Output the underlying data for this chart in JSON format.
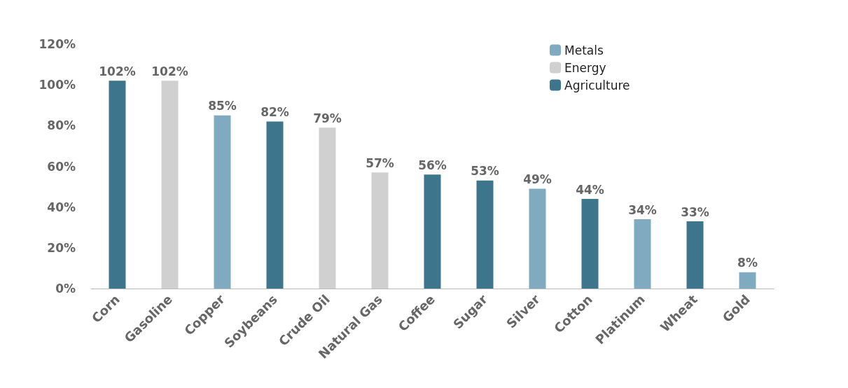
{
  "chart_data": {
    "type": "bar",
    "categories": [
      "Corn",
      "Gasoline",
      "Copper",
      "Soybeans",
      "Crude Oil",
      "Natural Gas",
      "Coffee",
      "Sugar",
      "Silver",
      "Cotton",
      "Platinum",
      "Wheat",
      "Gold"
    ],
    "series": [
      {
        "name": "Metals",
        "color": "#7faabf",
        "values": [
          null,
          null,
          85,
          null,
          null,
          null,
          null,
          null,
          49,
          null,
          34,
          null,
          8
        ],
        "value_labels": [
          null,
          null,
          "85%",
          null,
          null,
          null,
          null,
          null,
          "49%",
          null,
          "34%",
          null,
          "8%"
        ]
      },
      {
        "name": "Energy",
        "color": "#d0d0d0",
        "values": [
          null,
          102,
          null,
          null,
          79,
          57,
          null,
          null,
          null,
          null,
          null,
          null,
          null
        ],
        "value_labels": [
          null,
          "102%",
          null,
          null,
          "79%",
          "57%",
          null,
          null,
          null,
          null,
          null,
          null,
          null
        ]
      },
      {
        "name": "Agriculture",
        "color": "#3d758c",
        "values": [
          102,
          null,
          null,
          82,
          null,
          null,
          56,
          53,
          null,
          44,
          null,
          33,
          null
        ],
        "value_labels": [
          "102%",
          null,
          null,
          "82%",
          null,
          null,
          "56%",
          "53%",
          null,
          "44%",
          null,
          "33%",
          null
        ]
      }
    ],
    "ylim": [
      0,
      120
    ],
    "yticks": [
      {
        "value": 0,
        "label": "0%"
      },
      {
        "value": 20,
        "label": "20%"
      },
      {
        "value": 40,
        "label": "40%"
      },
      {
        "value": 60,
        "label": "60%"
      },
      {
        "value": 80,
        "label": "80%"
      },
      {
        "value": 100,
        "label": "100%"
      },
      {
        "value": 120,
        "label": "120%"
      }
    ],
    "grid": false,
    "legend": "top right"
  }
}
